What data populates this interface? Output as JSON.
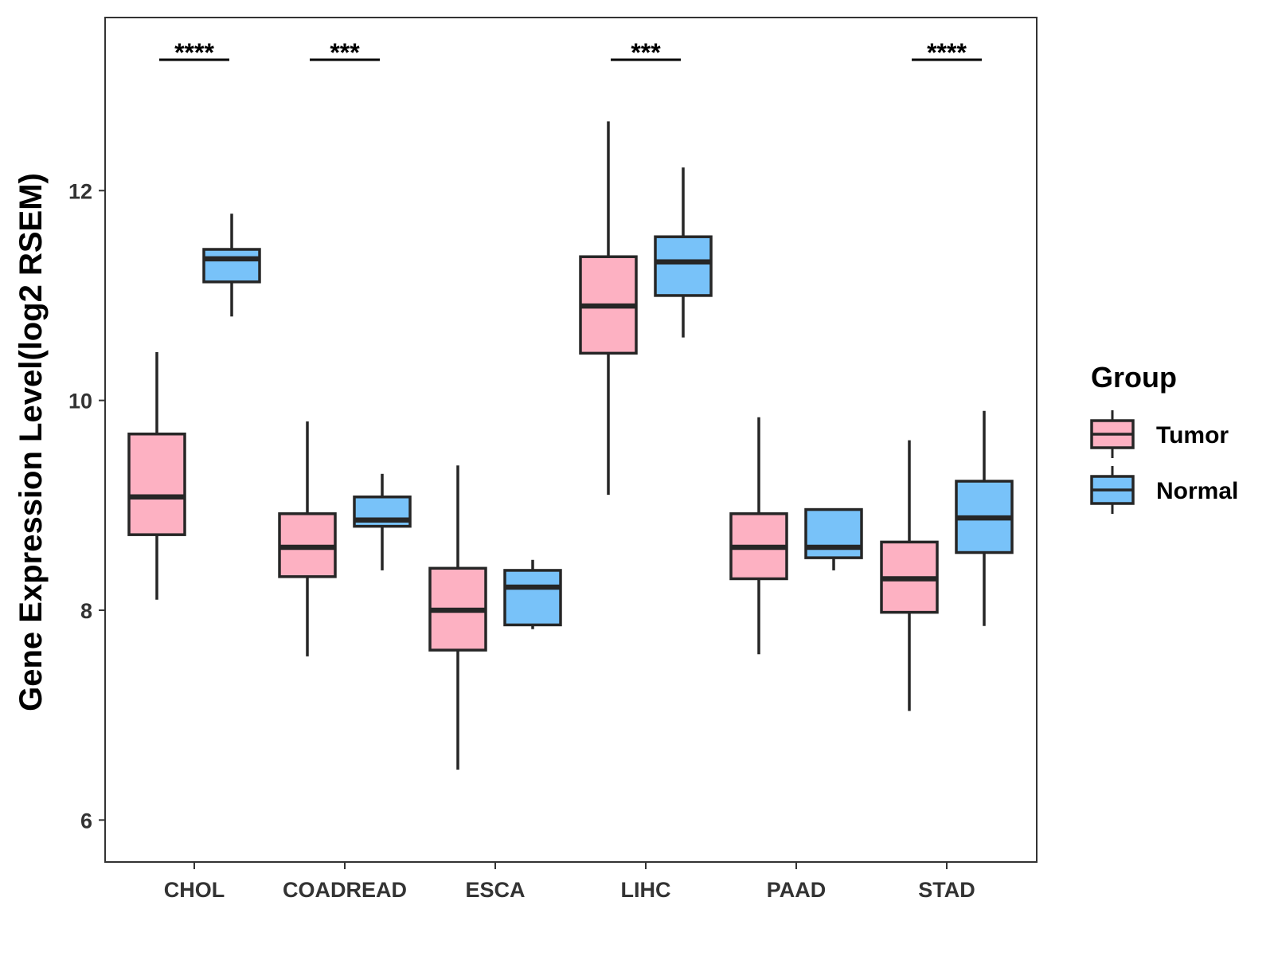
{
  "chart_data": {
    "type": "boxplot",
    "title": "",
    "xlabel": "",
    "ylabel": "Gene Expression Level(log2 RSEM)",
    "ylim": [
      5.6,
      13.65
    ],
    "yticks": [
      6,
      8,
      10,
      12
    ],
    "ytick_labels": [
      "6",
      "8",
      "10",
      "12"
    ],
    "categories": [
      "CHOL",
      "COADREAD",
      "ESCA",
      "LIHC",
      "PAAD",
      "STAD"
    ],
    "series": [
      {
        "name": "Tumor",
        "color": "#FDB1C2",
        "boxes": [
          {
            "low": 8.1,
            "q1": 8.72,
            "median": 9.08,
            "q3": 9.68,
            "high": 10.46
          },
          {
            "low": 7.56,
            "q1": 8.32,
            "median": 8.6,
            "q3": 8.92,
            "high": 9.8
          },
          {
            "low": 6.48,
            "q1": 7.62,
            "median": 8.0,
            "q3": 8.4,
            "high": 9.38
          },
          {
            "low": 9.1,
            "q1": 10.45,
            "median": 10.9,
            "q3": 11.37,
            "high": 12.66
          },
          {
            "low": 7.58,
            "q1": 8.3,
            "median": 8.6,
            "q3": 8.92,
            "high": 9.84
          },
          {
            "low": 7.04,
            "q1": 7.98,
            "median": 8.3,
            "q3": 8.65,
            "high": 9.62
          }
        ]
      },
      {
        "name": "Normal",
        "color": "#78C2F9",
        "boxes": [
          {
            "low": 10.8,
            "q1": 11.13,
            "median": 11.35,
            "q3": 11.44,
            "high": 11.78
          },
          {
            "low": 8.38,
            "q1": 8.8,
            "median": 8.86,
            "q3": 9.08,
            "high": 9.3
          },
          {
            "low": 7.82,
            "q1": 7.86,
            "median": 8.22,
            "q3": 8.38,
            "high": 8.48
          },
          {
            "low": 10.6,
            "q1": 11.0,
            "median": 11.32,
            "q3": 11.56,
            "high": 12.22
          },
          {
            "low": 8.38,
            "q1": 8.5,
            "median": 8.6,
            "q3": 8.96,
            "high": 8.96
          },
          {
            "low": 7.85,
            "q1": 8.55,
            "median": 8.88,
            "q3": 9.23,
            "high": 9.9
          }
        ]
      }
    ],
    "significance": [
      {
        "category": "CHOL",
        "label": "****"
      },
      {
        "category": "COADREAD",
        "label": "***"
      },
      {
        "category": "ESCA",
        "label": ""
      },
      {
        "category": "LIHC",
        "label": "***"
      },
      {
        "category": "PAAD",
        "label": ""
      },
      {
        "category": "STAD",
        "label": "****"
      }
    ],
    "legend": {
      "title": "Group",
      "entries": [
        "Tumor",
        "Normal"
      ],
      "position": "right"
    },
    "grid": false
  }
}
